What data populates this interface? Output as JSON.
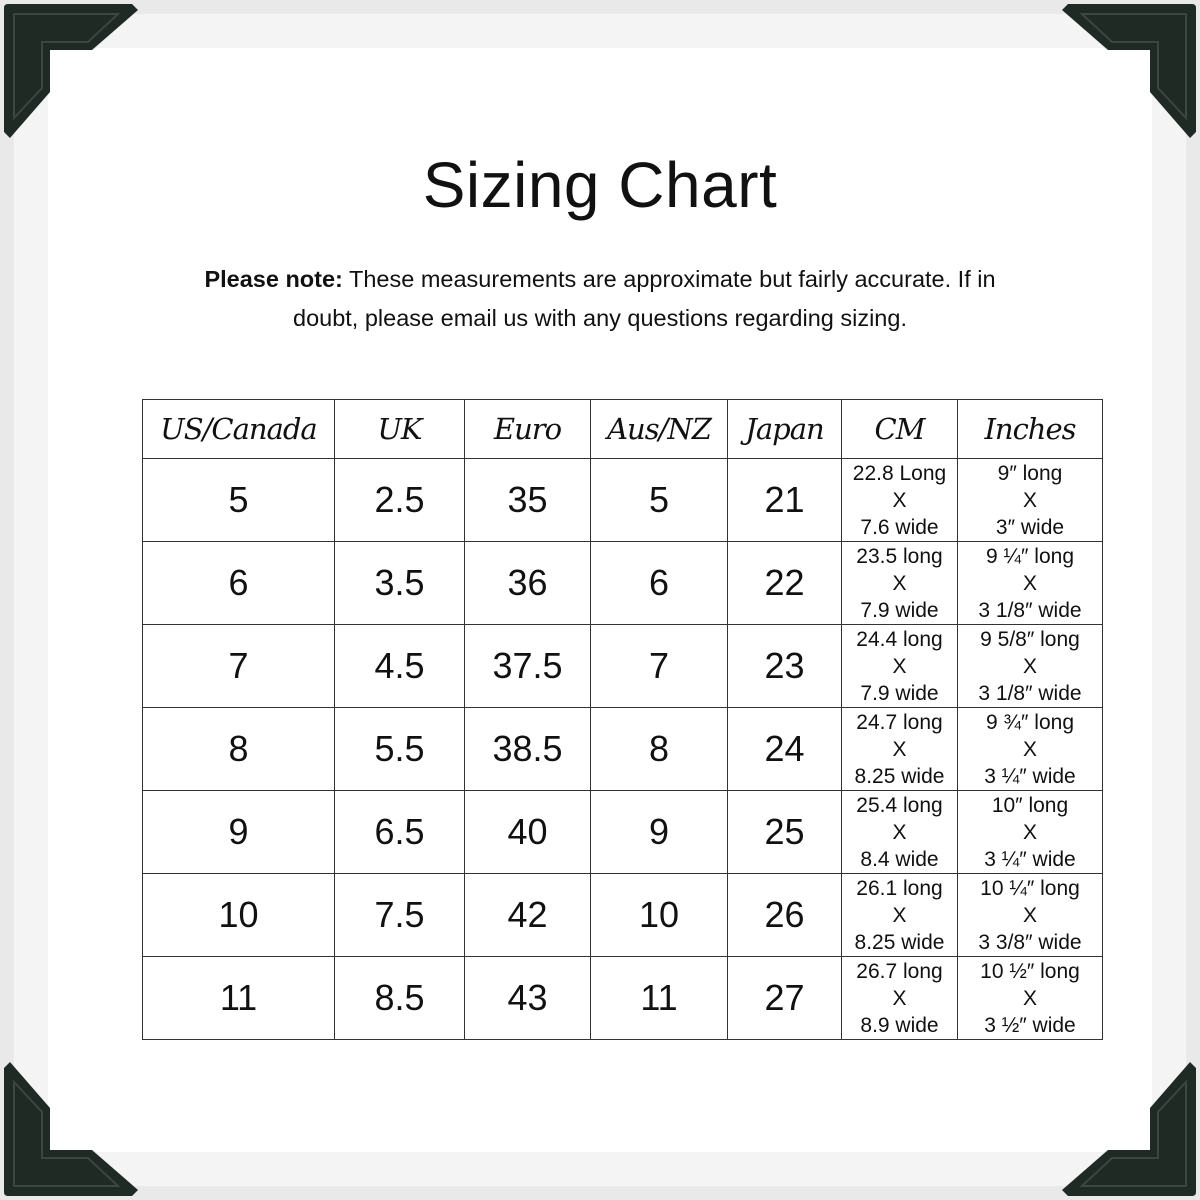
{
  "title": "Sizing Chart",
  "note": {
    "label": "Please note:",
    "text": " These measurements are approximate but fairly accurate. If in doubt, please email us with any questions regarding sizing."
  },
  "colors": {
    "corner": "#1f2a25",
    "border": "#333333"
  },
  "table": {
    "headers": [
      "US/Canada",
      "UK",
      "Euro",
      "Aus/NZ",
      "Japan",
      "CM",
      "Inches"
    ],
    "rows": [
      {
        "us": "5",
        "uk": "2.5",
        "euro": "35",
        "aus": "5",
        "japan": "21",
        "cm": [
          "22.8 Long",
          "X",
          "7.6 wide"
        ],
        "inches": [
          "9″ long",
          "X",
          "3″ wide"
        ]
      },
      {
        "us": "6",
        "uk": "3.5",
        "euro": "36",
        "aus": "6",
        "japan": "22",
        "cm": [
          "23.5 long",
          "X",
          "7.9 wide"
        ],
        "inches": [
          "9 ¼″ long",
          "X",
          "3 1/8″ wide"
        ]
      },
      {
        "us": "7",
        "uk": "4.5",
        "euro": "37.5",
        "aus": "7",
        "japan": "23",
        "cm": [
          "24.4 long",
          "X",
          "7.9 wide"
        ],
        "inches": [
          "9 5/8″ long",
          "X",
          "3 1/8″ wide"
        ]
      },
      {
        "us": "8",
        "uk": "5.5",
        "euro": "38.5",
        "aus": "8",
        "japan": "24",
        "cm": [
          "24.7 long",
          "X",
          "8.25 wide"
        ],
        "inches": [
          "9 ¾″ long",
          "X",
          "3 ¼″ wide"
        ]
      },
      {
        "us": "9",
        "uk": "6.5",
        "euro": "40",
        "aus": "9",
        "japan": "25",
        "cm": [
          "25.4 long",
          "X",
          "8.4 wide"
        ],
        "inches": [
          "10″ long",
          "X",
          "3 ¼″ wide"
        ]
      },
      {
        "us": "10",
        "uk": "7.5",
        "euro": "42",
        "aus": "10",
        "japan": "26",
        "cm": [
          "26.1 long",
          "X",
          "8.25 wide"
        ],
        "inches": [
          "10 ¼″ long",
          "X",
          "3 3/8″ wide"
        ]
      },
      {
        "us": "11",
        "uk": "8.5",
        "euro": "43",
        "aus": "11",
        "japan": "27",
        "cm": [
          "26.7 long",
          "X",
          "8.9 wide"
        ],
        "inches": [
          "10 ½″ long",
          "X",
          "3 ½″ wide"
        ]
      }
    ]
  }
}
